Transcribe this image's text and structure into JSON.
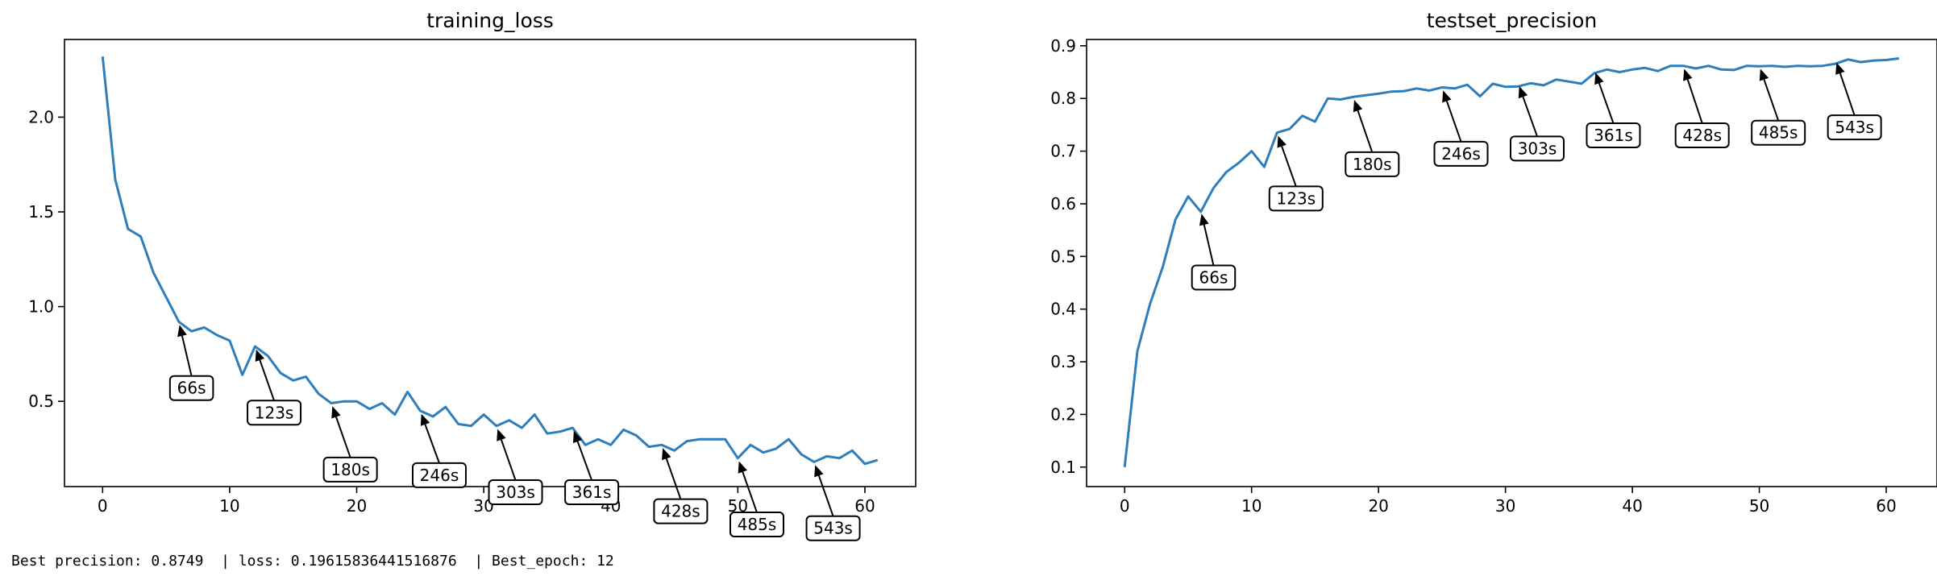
{
  "chart_data": [
    {
      "type": "line",
      "title": "training_loss",
      "xlabel": "",
      "ylabel": "",
      "xlim": [
        -3,
        64
      ],
      "ylim": [
        0.05,
        2.41
      ],
      "xticks": [
        0,
        10,
        20,
        30,
        40,
        50,
        60
      ],
      "yticks": [
        0.5,
        1.0,
        1.5,
        2.0
      ],
      "x": [
        0,
        1,
        2,
        3,
        4,
        5,
        6,
        7,
        8,
        9,
        10,
        11,
        12,
        13,
        14,
        15,
        16,
        17,
        18,
        19,
        20,
        21,
        22,
        23,
        24,
        25,
        26,
        27,
        28,
        29,
        30,
        31,
        32,
        33,
        34,
        35,
        36,
        37,
        38,
        39,
        40,
        41,
        42,
        43,
        44,
        45,
        46,
        47,
        48,
        49,
        50,
        51,
        52,
        53,
        54,
        55,
        56,
        57,
        58,
        59,
        60,
        61
      ],
      "values": [
        2.32,
        1.67,
        1.41,
        1.37,
        1.18,
        1.05,
        0.92,
        0.87,
        0.89,
        0.85,
        0.82,
        0.64,
        0.79,
        0.74,
        0.65,
        0.61,
        0.63,
        0.54,
        0.49,
        0.5,
        0.5,
        0.46,
        0.49,
        0.43,
        0.55,
        0.45,
        0.42,
        0.47,
        0.38,
        0.37,
        0.43,
        0.37,
        0.4,
        0.36,
        0.43,
        0.33,
        0.34,
        0.36,
        0.27,
        0.3,
        0.27,
        0.35,
        0.32,
        0.26,
        0.27,
        0.24,
        0.29,
        0.3,
        0.3,
        0.3,
        0.2,
        0.27,
        0.23,
        0.25,
        0.3,
        0.22,
        0.18,
        0.21,
        0.2,
        0.24,
        0.17,
        0.19
      ],
      "annotations": [
        {
          "label": "66s",
          "x": 6,
          "y": 0.92,
          "text_x": 7,
          "text_y": 0.57
        },
        {
          "label": "123s",
          "x": 12,
          "y": 0.79,
          "text_x": 13.5,
          "text_y": 0.44
        },
        {
          "label": "180s",
          "x": 18,
          "y": 0.49,
          "text_x": 19.5,
          "text_y": 0.14
        },
        {
          "label": "246s",
          "x": 25,
          "y": 0.45,
          "text_x": 26.5,
          "text_y": 0.11
        },
        {
          "label": "303s",
          "x": 31,
          "y": 0.37,
          "text_x": 32.5,
          "text_y": 0.02
        },
        {
          "label": "361s",
          "x": 37,
          "y": 0.36,
          "text_x": 38.5,
          "text_y": 0.02
        },
        {
          "label": "428s",
          "x": 44,
          "y": 0.27,
          "text_x": 45.5,
          "text_y": -0.08
        },
        {
          "label": "485s",
          "x": 50,
          "y": 0.2,
          "text_x": 51.5,
          "text_y": -0.15
        },
        {
          "label": "543s",
          "x": 56,
          "y": 0.18,
          "text_x": 57.5,
          "text_y": -0.17
        }
      ]
    },
    {
      "type": "line",
      "title": "testset_precision",
      "xlabel": "",
      "ylabel": "",
      "xlim": [
        -3,
        64
      ],
      "ylim": [
        0.063,
        0.912
      ],
      "xticks": [
        0,
        10,
        20,
        30,
        40,
        50,
        60
      ],
      "yticks": [
        0.1,
        0.2,
        0.3,
        0.4,
        0.5,
        0.6,
        0.7,
        0.8,
        0.9
      ],
      "x": [
        0,
        1,
        2,
        3,
        4,
        5,
        6,
        7,
        8,
        9,
        10,
        11,
        12,
        13,
        14,
        15,
        16,
        17,
        18,
        19,
        20,
        21,
        22,
        23,
        24,
        25,
        26,
        27,
        28,
        29,
        30,
        31,
        32,
        33,
        34,
        35,
        36,
        37,
        38,
        39,
        40,
        41,
        42,
        43,
        44,
        45,
        46,
        47,
        48,
        49,
        50,
        51,
        52,
        53,
        54,
        55,
        56,
        57,
        58,
        59,
        60,
        61
      ],
      "values": [
        0.1,
        0.32,
        0.41,
        0.48,
        0.57,
        0.614,
        0.585,
        0.63,
        0.66,
        0.678,
        0.7,
        0.67,
        0.735,
        0.742,
        0.767,
        0.756,
        0.8,
        0.798,
        0.803,
        0.806,
        0.809,
        0.813,
        0.814,
        0.819,
        0.815,
        0.821,
        0.819,
        0.826,
        0.804,
        0.828,
        0.822,
        0.823,
        0.829,
        0.825,
        0.836,
        0.832,
        0.828,
        0.848,
        0.855,
        0.85,
        0.855,
        0.858,
        0.852,
        0.862,
        0.862,
        0.857,
        0.862,
        0.855,
        0.854,
        0.862,
        0.861,
        0.862,
        0.86,
        0.862,
        0.861,
        0.862,
        0.866,
        0.874,
        0.869,
        0.872,
        0.873,
        0.876
      ],
      "annotations": [
        {
          "label": "66s",
          "x": 6,
          "y": 0.587,
          "text_x": 7,
          "text_y": 0.46
        },
        {
          "label": "123s",
          "x": 12,
          "y": 0.735,
          "text_x": 13.5,
          "text_y": 0.61
        },
        {
          "label": "180s",
          "x": 18,
          "y": 0.803,
          "text_x": 19.5,
          "text_y": 0.675
        },
        {
          "label": "246s",
          "x": 25,
          "y": 0.821,
          "text_x": 26.5,
          "text_y": 0.695
        },
        {
          "label": "303s",
          "x": 31,
          "y": 0.829,
          "text_x": 32.5,
          "text_y": 0.705
        },
        {
          "label": "361s",
          "x": 37,
          "y": 0.855,
          "text_x": 38.5,
          "text_y": 0.73
        },
        {
          "label": "428s",
          "x": 44,
          "y": 0.862,
          "text_x": 45.5,
          "text_y": 0.73
        },
        {
          "label": "485s",
          "x": 50,
          "y": 0.862,
          "text_x": 51.5,
          "text_y": 0.735
        },
        {
          "label": "543s",
          "x": 56,
          "y": 0.874,
          "text_x": 57.5,
          "text_y": 0.745
        }
      ]
    }
  ],
  "footer": {
    "text": "Best precision: 0.8749  | loss: 0.19615836441516876  | Best_epoch: 12"
  },
  "colors": {
    "series": "#2f7ebc",
    "axis": "#000000",
    "background": "#ffffff"
  }
}
